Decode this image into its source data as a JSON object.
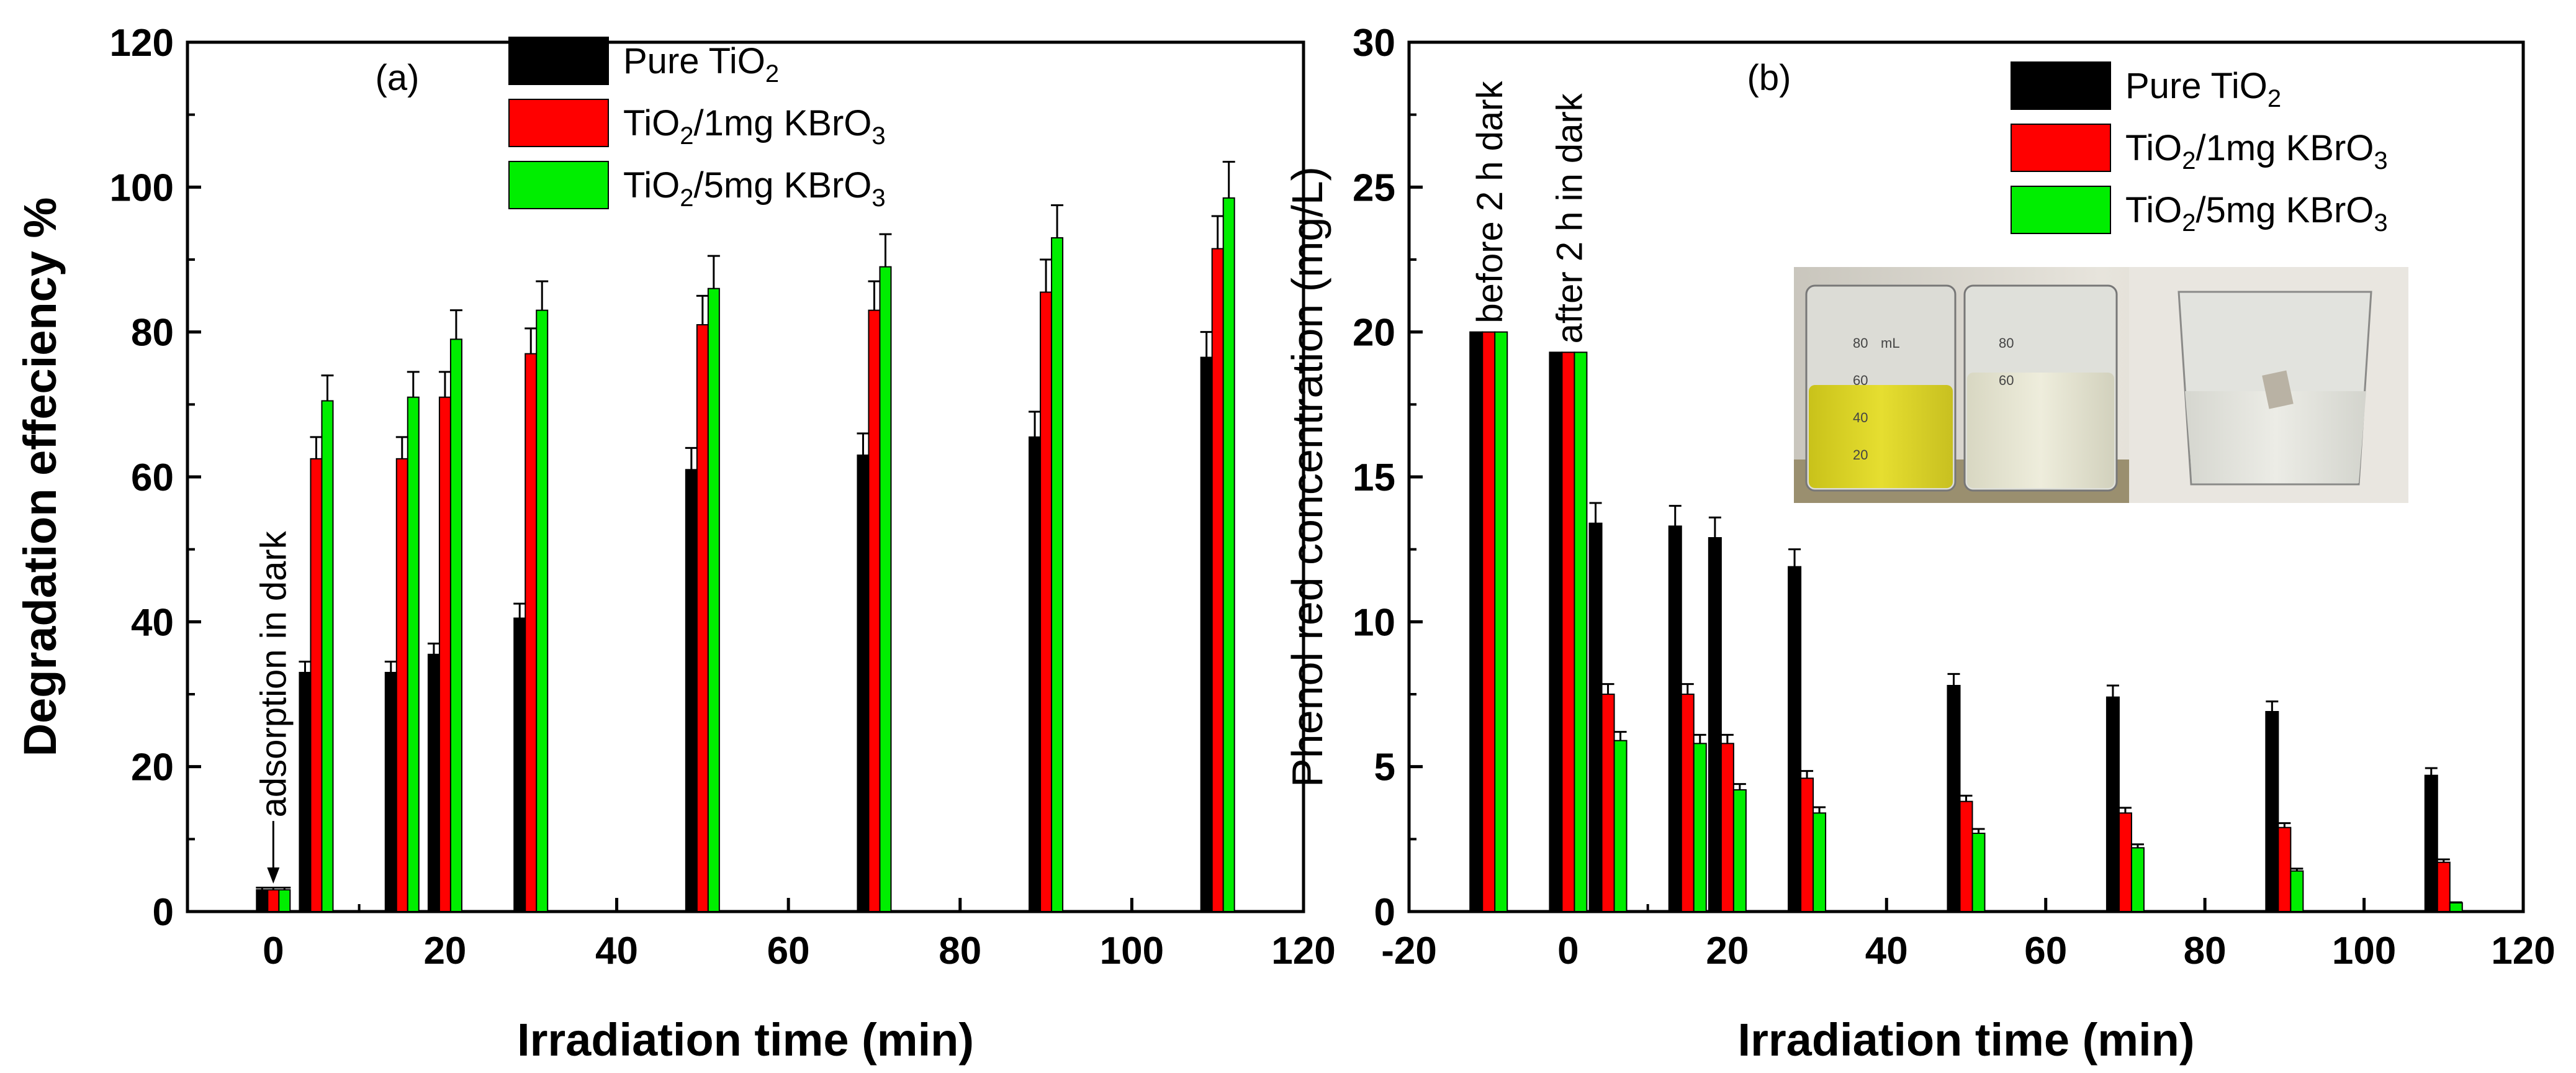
{
  "chart_data": [
    {
      "type": "bar",
      "panel_label": "(a)",
      "ylabel": "Degradation effeciency %",
      "xlabel": "Irradiation time (min)",
      "xlim": [
        -10,
        120
      ],
      "ylim": [
        0,
        120
      ],
      "xticks": [
        0,
        20,
        40,
        60,
        80,
        100,
        120
      ],
      "yticks": [
        0,
        20,
        40,
        60,
        80,
        100,
        120
      ],
      "x": [
        0,
        5,
        15,
        20,
        30,
        50,
        70,
        90,
        110
      ],
      "series": [
        {
          "name": "Pure TiO2",
          "color": "#000000",
          "values": [
            3,
            33,
            33,
            35.5,
            40.5,
            61,
            63,
            65.5,
            76.5
          ],
          "errors": [
            0.3,
            1.5,
            1.5,
            1.5,
            2,
            3,
            3,
            3.5,
            3.5
          ]
        },
        {
          "name": "TiO2/1mg KBrO3",
          "color": "#ff0000",
          "values": [
            3,
            62.5,
            62.5,
            71,
            77,
            81,
            83,
            85.5,
            91.5
          ],
          "errors": [
            0.3,
            3,
            3,
            3.5,
            3.5,
            4,
            4,
            4.5,
            4.5
          ]
        },
        {
          "name": "TiO2/5mg KBrO3",
          "color": "#00ee00",
          "values": [
            3,
            70.5,
            71,
            79,
            83,
            86,
            89,
            93,
            98.5
          ],
          "errors": [
            0.3,
            3.5,
            3.5,
            4,
            4,
            4.5,
            4.5,
            4.5,
            5
          ]
        }
      ],
      "annotations": [
        "adsorption in dark"
      ],
      "legend": [
        {
          "main": "Pure TiO",
          "sub": "2",
          "tail": ""
        },
        {
          "main": "TiO",
          "sub": "2",
          "tail": "/1mg KBrO",
          "sub2": "3"
        },
        {
          "main": "TiO",
          "sub": "2",
          "tail": "/5mg KBrO",
          "sub2": "3"
        }
      ]
    },
    {
      "type": "bar",
      "panel_label": "(b)",
      "ylabel": "Phenol red concentration (mg/L)",
      "xlabel": "Irradiation time (min)",
      "xlim": [
        -20,
        120
      ],
      "ylim": [
        0,
        30
      ],
      "xticks": [
        -20,
        0,
        20,
        40,
        60,
        80,
        100,
        120
      ],
      "yticks": [
        0,
        5,
        10,
        15,
        20,
        25,
        30
      ],
      "x": [
        -10,
        0,
        5,
        15,
        20,
        30,
        50,
        70,
        90,
        110
      ],
      "series": [
        {
          "name": "Pure TiO2",
          "color": "#000000",
          "values": [
            20,
            19.3,
            13.4,
            13.3,
            12.9,
            11.9,
            7.8,
            7.4,
            6.9,
            4.7
          ],
          "errors": [
            0,
            0,
            0.7,
            0.7,
            0.7,
            0.6,
            0.4,
            0.4,
            0.35,
            0.25
          ]
        },
        {
          "name": "TiO2/1mg KBrO3",
          "color": "#ff0000",
          "values": [
            20,
            19.3,
            7.5,
            7.5,
            5.8,
            4.6,
            3.8,
            3.4,
            2.9,
            1.7
          ],
          "errors": [
            0,
            0,
            0.35,
            0.35,
            0.3,
            0.25,
            0.2,
            0.18,
            0.15,
            0.1
          ]
        },
        {
          "name": "TiO2/5mg KBrO3",
          "color": "#00ee00",
          "values": [
            20,
            19.3,
            5.9,
            5.8,
            4.2,
            3.4,
            2.7,
            2.2,
            1.4,
            0.3
          ],
          "errors": [
            0,
            0,
            0.3,
            0.3,
            0.2,
            0.2,
            0.15,
            0.12,
            0.08,
            0.02
          ]
        }
      ],
      "annotations": [
        "before 2 h dark",
        "after 2 h in dark"
      ],
      "legend": [
        {
          "main": "Pure TiO",
          "sub": "2",
          "tail": ""
        },
        {
          "main": "TiO",
          "sub": "2",
          "tail": "/1mg KBrO",
          "sub2": "3"
        },
        {
          "main": "TiO",
          "sub": "2",
          "tail": "/5mg KBrO",
          "sub2": "3"
        }
      ],
      "inset_photo": {
        "label_a": "80",
        "label_b": "mL",
        "label_c": "60",
        "label_d": "40",
        "label_e": "20",
        "label_f": "80",
        "label_g": "60"
      }
    }
  ]
}
